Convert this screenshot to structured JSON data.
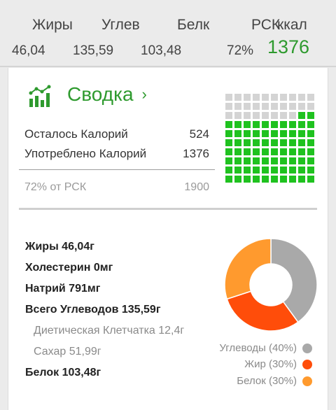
{
  "header": {
    "labels": {
      "fat": "Жиры",
      "carbs": "Углев",
      "protein": "Белк",
      "rsk": "РСК",
      "kcal": "ккал"
    },
    "values": {
      "fat": "46,04",
      "carbs": "135,59",
      "protein": "103,48",
      "percent": "72%",
      "kcal": "1376"
    }
  },
  "summary": {
    "title": "Сводка",
    "remaining_label": "Осталось Калорий",
    "remaining_value": "524",
    "consumed_label": "Употреблено Калорий",
    "consumed_value": "1376",
    "rsk_label": "72% от РСК",
    "rsk_value": "1900",
    "progress": {
      "filled_cells": 72,
      "total_cells": 100
    }
  },
  "nutrients": {
    "fat": "Жиры 46,04г",
    "cholesterol": "Холестерин 0мг",
    "sodium": "Натрий 791мг",
    "total_carbs": "Всего Углеводов 135,59г",
    "fiber": "Диетическая Клетчатка 12,4г",
    "sugar": "Сахар 51,99г",
    "protein": "Белок 103,48г"
  },
  "chart_data": {
    "type": "pie",
    "donut": true,
    "title": "",
    "slices": [
      {
        "label": "Углеводы (40%)",
        "value": 40,
        "color": "#a9a9a9"
      },
      {
        "label": "Жир (30%)",
        "value": 30,
        "color": "#ff4d0a"
      },
      {
        "label": "Белок (30%)",
        "value": 30,
        "color": "#ff9a2e"
      }
    ]
  },
  "colors": {
    "accent": "#2e9a2e",
    "grid_filled": "#1fc21f",
    "grid_empty": "#d4d4d4"
  }
}
